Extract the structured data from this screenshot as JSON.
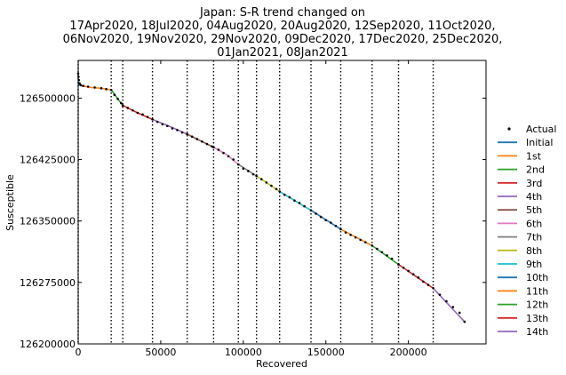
{
  "chart_data": {
    "type": "line",
    "title_lines": [
      "Japan: S-R trend changed on",
      "17Apr2020, 18Jul2020, 04Aug2020, 20Aug2020, 12Sep2020, 11Oct2020,",
      "06Nov2020, 19Nov2020, 29Nov2020, 09Dec2020, 17Dec2020, 25Dec2020,",
      "01Jan2021, 08Jan2021"
    ],
    "xlabel": "Recovered",
    "ylabel": "Susceptible",
    "xlim": [
      0,
      247000
    ],
    "ylim": [
      126200000,
      126546000
    ],
    "log_scale": false,
    "grid": false,
    "legend_position": "right",
    "x_ticks": [
      0,
      50000,
      100000,
      150000,
      200000
    ],
    "x_tick_labels": [
      "0",
      "50000",
      "100000",
      "150000",
      "200000"
    ],
    "y_ticks": [
      126200000,
      126275000,
      126350000,
      126425000,
      126500000
    ],
    "y_tick_labels": [
      "126200000",
      "126275000",
      "126350000",
      "126425000",
      "126500000"
    ],
    "change_points_x": [
      0,
      20000,
      27000,
      45000,
      66000,
      82000,
      97000,
      108000,
      122000,
      141000,
      159000,
      178000,
      194000,
      215000
    ],
    "series": [
      {
        "name": "Actual",
        "kind": "points",
        "color": "#000000"
      },
      {
        "name": "Initial",
        "color": "#1f77b4",
        "x": [
          0,
          200,
          800,
          2000
        ],
        "y": [
          126520000,
          126518000,
          126516000,
          126515000
        ]
      },
      {
        "name": "1st",
        "color": "#ff7f0e",
        "x": [
          2000,
          8000,
          14000,
          20000
        ],
        "y": [
          126515000,
          126513000,
          126512000,
          126510000
        ]
      },
      {
        "name": "2nd",
        "color": "#2ca02c",
        "x": [
          20000,
          24000,
          27000
        ],
        "y": [
          126510000,
          126499000,
          126491000
        ]
      },
      {
        "name": "3rd",
        "color": "#d62728",
        "x": [
          27000,
          36000,
          45000
        ],
        "y": [
          126491000,
          126482000,
          126474000
        ]
      },
      {
        "name": "4th",
        "color": "#9467bd",
        "x": [
          45000,
          56000,
          66000
        ],
        "y": [
          126474000,
          126465000,
          126456000
        ]
      },
      {
        "name": "5th",
        "color": "#8c564b",
        "x": [
          66000,
          74000,
          82000
        ],
        "y": [
          126456000,
          126448000,
          126440000
        ]
      },
      {
        "name": "6th",
        "color": "#e377c2",
        "x": [
          82000,
          90000,
          97000
        ],
        "y": [
          126440000,
          126431000,
          126419000
        ]
      },
      {
        "name": "7th",
        "color": "#7f7f7f",
        "x": [
          97000,
          108000
        ],
        "y": [
          126419000,
          126405000
        ]
      },
      {
        "name": "8th",
        "color": "#bcbd22",
        "x": [
          108000,
          122000
        ],
        "y": [
          126405000,
          126386000
        ]
      },
      {
        "name": "9th",
        "color": "#17becf",
        "x": [
          122000,
          141000
        ],
        "y": [
          126386000,
          126363000
        ]
      },
      {
        "name": "10th",
        "color": "#1f77b4",
        "x": [
          141000,
          159000
        ],
        "y": [
          126363000,
          126340000
        ]
      },
      {
        "name": "11th",
        "color": "#ff7f0e",
        "x": [
          159000,
          178000
        ],
        "y": [
          126340000,
          126320000
        ]
      },
      {
        "name": "12th",
        "color": "#2ca02c",
        "x": [
          178000,
          194000
        ],
        "y": [
          126320000,
          126297000
        ]
      },
      {
        "name": "13th",
        "color": "#d62728",
        "x": [
          194000,
          215000
        ],
        "y": [
          126297000,
          126268000
        ]
      },
      {
        "name": "14th",
        "color": "#9467bd",
        "x": [
          215000,
          234000
        ],
        "y": [
          126268000,
          126227000
        ]
      }
    ],
    "actual_points": {
      "x": [
        0,
        200,
        400,
        800,
        1500,
        3000,
        6000,
        10000,
        14000,
        17000,
        20000,
        22000,
        24000,
        26000,
        27000,
        30000,
        33000,
        36000,
        39000,
        42000,
        45000,
        48000,
        51000,
        54000,
        57000,
        60000,
        63000,
        66000,
        69000,
        72000,
        75000,
        78000,
        81000,
        82000,
        85000,
        88000,
        91000,
        94000,
        97000,
        100000,
        103000,
        106000,
        108000,
        111000,
        114000,
        117000,
        120000,
        122000,
        125000,
        128000,
        131000,
        134000,
        137000,
        141000,
        144000,
        147000,
        150000,
        153000,
        156000,
        159000,
        162000,
        165000,
        168000,
        171000,
        174000,
        178000,
        181000,
        184000,
        187000,
        190000,
        194000,
        197000,
        200000,
        203000,
        206000,
        209000,
        212000,
        215000,
        219000,
        223000,
        227000,
        231000,
        234000
      ],
      "y": [
        126530000,
        126526000,
        126522000,
        126518000,
        126516000,
        126515000,
        126514000,
        126513000,
        126512000,
        126511000,
        126510000,
        126504000,
        126499000,
        126494000,
        126491000,
        126488000,
        126485000,
        126482000,
        126480000,
        126477000,
        126474000,
        126471000,
        126468000,
        126466000,
        126463000,
        126461000,
        126458000,
        126456000,
        126453000,
        126450000,
        126447000,
        126444000,
        126441000,
        126440000,
        126437000,
        126433000,
        126429000,
        126425000,
        126419000,
        126414000,
        126411000,
        126407000,
        126405000,
        126401000,
        126397000,
        126393000,
        126389000,
        126386000,
        126382000,
        126379000,
        126375000,
        126372000,
        126368000,
        126363000,
        126359000,
        126355000,
        126351000,
        126348000,
        126344000,
        126340000,
        126336000,
        126333000,
        126330000,
        126327000,
        126324000,
        126320000,
        126316000,
        126312000,
        126308000,
        126304000,
        126297000,
        126293000,
        126289000,
        126285000,
        126281000,
        126276000,
        126272000,
        126268000,
        126260000,
        126252000,
        126245000,
        126238000,
        126227000
      ]
    }
  }
}
